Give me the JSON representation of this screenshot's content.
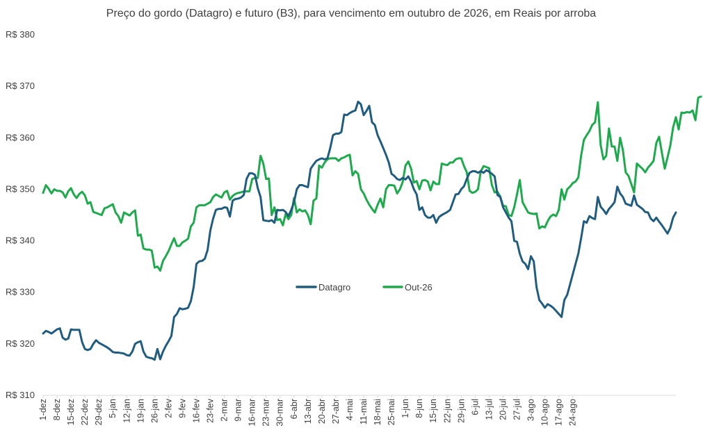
{
  "chart_data": {
    "type": "line",
    "title": "Preço do gordo (Datagro) e futuro (B3), para vencimento em outubro de 2026, em Reais por arroba",
    "xlabel": "",
    "ylabel": "",
    "ylim": [
      310,
      380
    ],
    "y_ticks": [
      310,
      320,
      330,
      340,
      350,
      360,
      370,
      380
    ],
    "y_tick_labels": [
      "R$ 310",
      "R$ 320",
      "R$ 330",
      "R$ 340",
      "R$ 350",
      "R$ 360",
      "R$ 370",
      "R$ 380"
    ],
    "x_tick_labels": [
      "1-dez",
      "8-dez",
      "15-dez",
      "22-dez",
      "29-dez",
      "5-jan",
      "12-jan",
      "19-jan",
      "26-jan",
      "2-fev",
      "9-fev",
      "16-fev",
      "23-fev",
      "2-mar",
      "9-mar",
      "16-mar",
      "23-mar",
      "30-mar",
      "6-abr",
      "13-abr",
      "20-abr",
      "27-abr",
      "4-mai",
      "11-mai",
      "18-mai",
      "25-mai",
      "1-jun",
      "8-jun",
      "15-jun",
      "22-jun",
      "29-jun",
      "6-jul",
      "13-jul",
      "20-jul",
      "27-jul",
      "3-ago",
      "10-ago",
      "17-ago",
      "24-ago"
    ],
    "legend_position": "center",
    "grid": false,
    "series": [
      {
        "name": "Datagro",
        "color": "#1f5c80",
        "values": [
          322.0,
          322.5,
          322.3,
          322.0,
          322.4,
          322.8,
          323.0,
          321.2,
          320.8,
          321.0,
          322.8,
          322.7,
          322.7,
          322.7,
          320.3,
          319.0,
          318.8,
          319.0,
          320.0,
          320.7,
          320.2,
          319.9,
          319.6,
          319.3,
          318.9,
          318.4,
          318.3,
          318.3,
          318.2,
          318.1,
          317.8,
          317.7,
          318.5,
          320.0,
          320.3,
          320.5,
          318.5,
          317.5,
          317.3,
          317.2,
          316.9,
          319.0,
          317.0,
          318.5,
          319.6,
          320.5,
          321.5,
          325.2,
          325.8,
          326.9,
          326.7,
          326.8,
          327.0,
          328.3,
          331.0,
          335.5,
          336.0,
          336.1,
          336.5,
          338.2,
          342.0,
          344.3,
          346.0,
          346.2,
          346.2,
          346.5,
          346.4,
          344.7,
          347.8,
          348.1,
          348.2,
          348.4,
          348.9,
          352.0,
          353.1,
          353.1,
          352.8,
          350.2,
          348.5,
          344.0,
          343.9,
          343.8,
          344.0,
          343.5,
          346.0,
          345.9,
          346.0,
          345.6,
          344.8,
          346.0,
          347.5,
          350.0,
          350.8,
          350.8,
          350.6,
          350.4,
          354.0,
          354.8,
          355.5,
          355.8,
          356.0,
          355.8,
          356.0,
          358.0,
          360.5,
          360.8,
          360.8,
          361.1,
          364.5,
          364.4,
          364.8,
          365.1,
          365.3,
          367.0,
          366.5,
          364.4,
          365.2,
          366.2,
          363.0,
          362.5,
          360.5,
          359.3,
          358.0,
          356.7,
          355.2,
          353.0,
          352.6,
          352.0,
          351.8,
          352.2,
          351.9,
          352.5,
          351.5,
          350.0,
          349.0,
          346.0,
          346.5,
          345.0,
          344.5,
          344.5,
          345.0,
          343.5,
          344.6,
          345.0,
          345.3,
          345.6,
          346.0,
          347.5,
          349.0,
          349.1,
          350.0,
          350.6,
          352.0,
          353.2,
          353.5,
          353.5,
          353.2,
          353.5,
          353.2,
          353.7,
          353.4,
          353.0,
          352.5,
          348.9,
          348.5,
          346.5,
          345.5,
          344.5,
          343.8,
          340.0,
          339.8,
          337.5,
          336.0,
          335.5,
          334.5,
          337.0,
          336.0,
          331.0,
          328.5,
          327.8,
          327.0,
          327.7,
          327.4,
          327.0,
          326.4,
          325.8,
          325.2,
          328.5,
          329.5,
          331.5,
          333.5,
          335.5,
          337.5,
          340.5,
          343.8,
          343.5,
          344.8,
          344.4,
          344.2,
          348.5,
          346.6,
          346.0,
          345.2,
          346.2,
          346.8,
          347.5,
          350.5,
          349.2,
          348.5,
          347.2,
          347.0,
          346.8,
          348.8,
          347.0,
          346.6,
          346.2,
          345.6,
          345.5,
          344.3,
          343.8,
          344.5,
          343.7,
          343.0,
          342.2,
          341.4,
          342.5,
          344.5,
          345.5
        ]
      },
      {
        "name": "Out-26",
        "color": "#1daa4c",
        "values": [
          349.3,
          350.8,
          350.1,
          349.2,
          350.0,
          349.7,
          349.7,
          349.4,
          348.4,
          349.6,
          350.2,
          349.0,
          348.3,
          349.1,
          349.5,
          348.8,
          347.2,
          347.5,
          345.6,
          345.4,
          345.2,
          345.0,
          346.3,
          346.5,
          346.8,
          347.1,
          345.5,
          344.8,
          343.5,
          345.5,
          345.2,
          344.9,
          345.5,
          345.9,
          341.0,
          341.2,
          338.5,
          338.3,
          338.3,
          338.1,
          334.8,
          335.0,
          334.2,
          336.1,
          337.0,
          338.0,
          339.3,
          340.5,
          339.0,
          339.0,
          339.7,
          340.0,
          340.4,
          342.8,
          343.5,
          346.5,
          346.9,
          346.9,
          346.9,
          347.2,
          347.5,
          348.5,
          349.0,
          348.7,
          348.4,
          349.4,
          349.7,
          348.0,
          348.7,
          349.1,
          349.3,
          349.4,
          349.6,
          349.6,
          349.6,
          352.0,
          352.2,
          352.2,
          356.5,
          355.0,
          352.0,
          352.1,
          345.0,
          346.5,
          344.0,
          344.2,
          343.0,
          345.2,
          344.2,
          345.0,
          348.3,
          345.5,
          346.1,
          345.7,
          345.9,
          345.0,
          343.2,
          347.8,
          348.2,
          354.6,
          354.2,
          355.2,
          355.8,
          356.0,
          356.0,
          356.0,
          355.5,
          356.0,
          356.2,
          356.5,
          356.7,
          352.7,
          353.5,
          353.0,
          350.0,
          349.2,
          348.0,
          347.0,
          346.2,
          345.5,
          347.0,
          348.2,
          346.5,
          350.0,
          350.8,
          350.8,
          350.7,
          349.2,
          350.0,
          351.4,
          354.6,
          355.4,
          354.0,
          351.3,
          351.6,
          350.0,
          351.7,
          351.8,
          351.5,
          349.8,
          351.5,
          351.0,
          351.0,
          355.0,
          354.8,
          354.7,
          355.2,
          355.2,
          355.8,
          356.0,
          356.0,
          354.5,
          353.3,
          349.7,
          349.3,
          349.5,
          350.0,
          353.5,
          354.5,
          354.3,
          354.1,
          350.8,
          349.4,
          349.5,
          348.6,
          346.8,
          346.7,
          345.0,
          344.8,
          346.5,
          349.0,
          351.8,
          347.5,
          346.5,
          345.5,
          345.3,
          345.2,
          345.3,
          342.4,
          342.8,
          342.6,
          343.8,
          344.7,
          345.1,
          344.8,
          346.0,
          350.0,
          348.0,
          350.0,
          350.5,
          351.2,
          351.5,
          352.3,
          356.5,
          359.6,
          360.5,
          361.3,
          362.5,
          363.0,
          366.9,
          358.6,
          355.8,
          356.5,
          361.8,
          358.3,
          358.3,
          355.5,
          360.0,
          357.6,
          353.3,
          352.6,
          351.0,
          349.4,
          355.0,
          354.5,
          354.0,
          353.3,
          354.2,
          354.8,
          355.5,
          359.0,
          360.2,
          357.0,
          354.0,
          356.2,
          358.5,
          362.0,
          364.0,
          361.6,
          364.9,
          364.8,
          365.0,
          364.9,
          365.3,
          363.4,
          367.8,
          368.0
        ]
      }
    ]
  }
}
